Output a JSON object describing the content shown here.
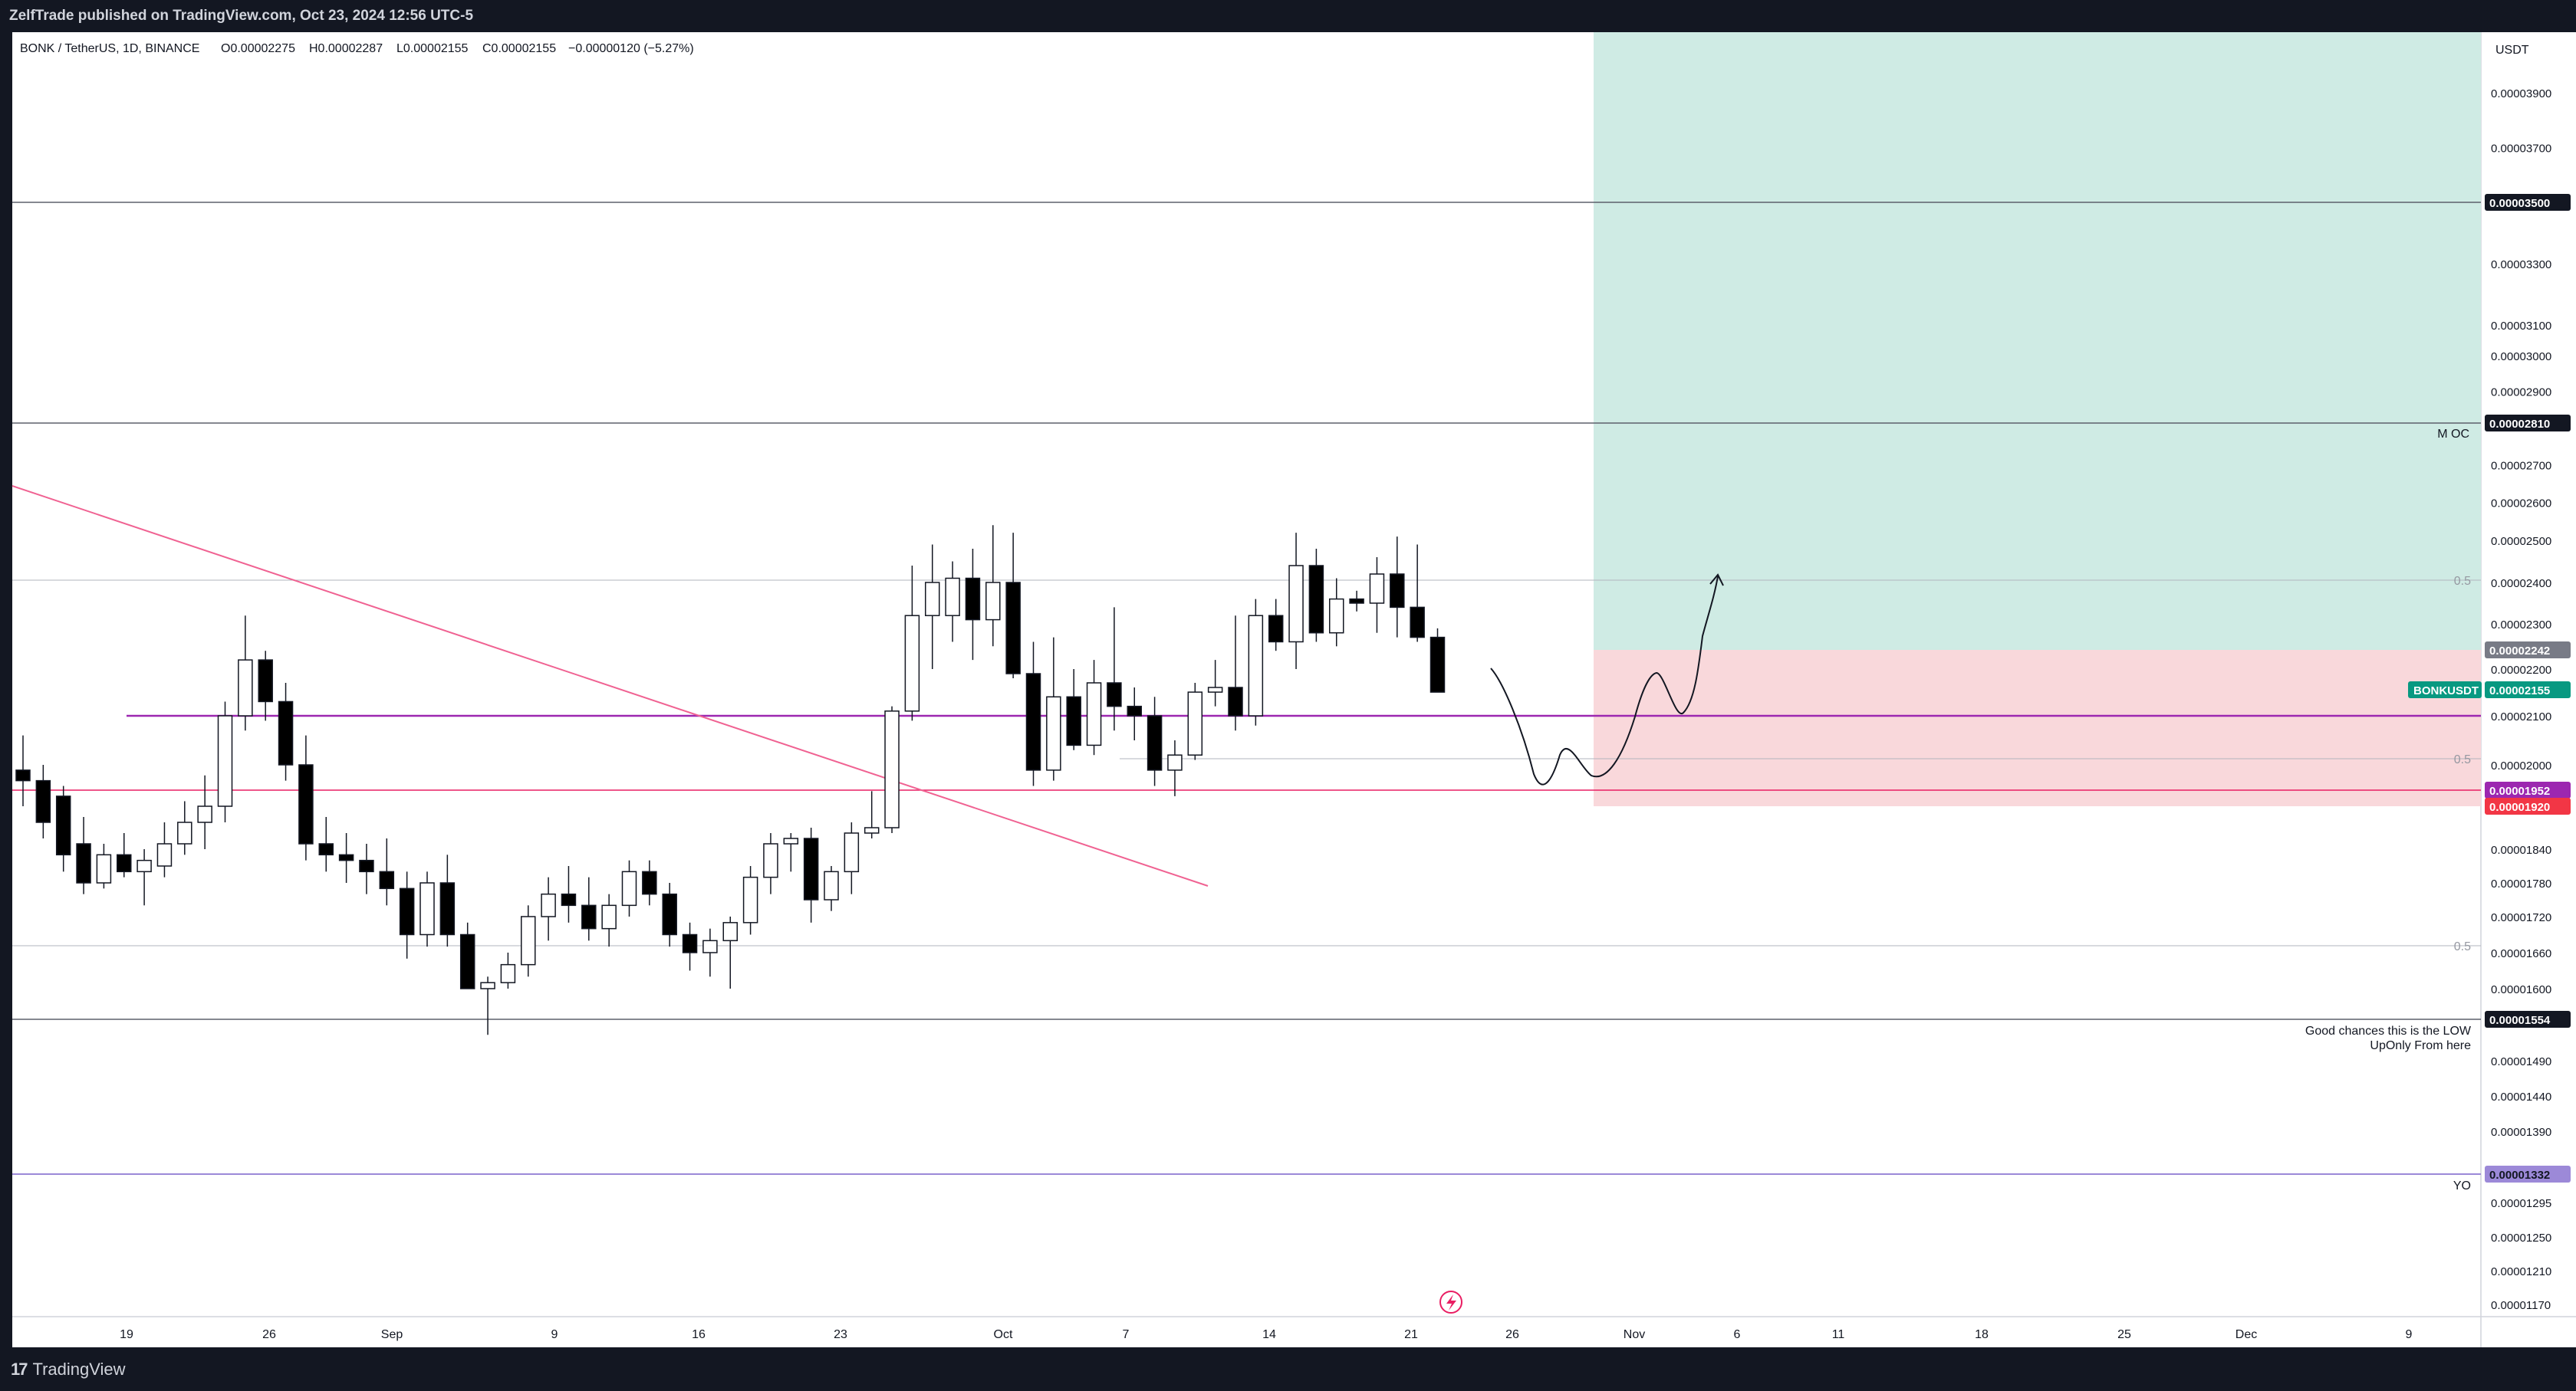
{
  "publisher": "ZelfTrade published on TradingView.com, Oct 23, 2024 12:56 UTC-5",
  "symbol_info": "BONK / TetherUS, 1D, BINANCE",
  "ohlc": {
    "o": "O0.00002275",
    "h": "H0.00002287",
    "l": "L0.00002155",
    "c": "C0.00002155",
    "change": "−0.00000120 (−5.27%)"
  },
  "currency": "USDT",
  "footer_brand": "TradingView",
  "colors": {
    "bull": "#ffffff",
    "bear": "#000000",
    "target_zone": "#cfebe4",
    "stop_zone": "#f9d8db",
    "trendline": "#f06292",
    "purple_line": "#9c27b0",
    "pink_line": "#e91e63",
    "yo_line": "#9c89d8"
  },
  "chart_data": {
    "type": "candlestick",
    "price_axis_labels": [
      "0.00003900",
      "0.00003700",
      "0.00003300",
      "0.00003100",
      "0.00003000",
      "0.00002900",
      "0.00002700",
      "0.00002600",
      "0.00002500",
      "0.00002400",
      "0.00002300",
      "0.00002200",
      "0.00002100",
      "0.00002000",
      "0.00001840",
      "0.00001780",
      "0.00001720",
      "0.00001660",
      "0.00001600",
      "0.00001490",
      "0.00001440",
      "0.00001390",
      "0.00001295",
      "0.00001250",
      "0.00001210",
      "0.00001170"
    ],
    "price_tags": [
      {
        "value": "0.00003500",
        "bg": "#131722",
        "fg": "#ffffff"
      },
      {
        "value": "0.00002810",
        "bg": "#131722",
        "fg": "#ffffff"
      },
      {
        "value": "0.00002242",
        "bg": "#787b86",
        "fg": "#ffffff"
      },
      {
        "value": "0.00002155",
        "bg": "#089981",
        "fg": "#ffffff",
        "symbol": "BONKUSDT"
      },
      {
        "value": "0.00001952",
        "bg": "#9c27b0",
        "fg": "#ffffff"
      },
      {
        "value": "0.00001920",
        "bg": "#f23645",
        "fg": "#ffffff"
      },
      {
        "value": "0.00001554",
        "bg": "#131722",
        "fg": "#ffffff"
      },
      {
        "value": "0.00001332",
        "bg": "#9c89d8",
        "fg": "#131722"
      }
    ],
    "time_axis_labels": [
      "19",
      "26",
      "Sep",
      "9",
      "16",
      "23",
      "Oct",
      "7",
      "14",
      "21",
      "26",
      "Nov",
      "6",
      "11",
      "18",
      "25",
      "Dec",
      "9"
    ],
    "annotations": {
      "moc": "M OC",
      "yo": "YO",
      "half": "0.5",
      "note_line1": "Good chances this is the LOW",
      "note_line2": "UpOnly From here"
    },
    "candles": [
      {
        "o": 1.99e-05,
        "h": 2.06e-05,
        "l": 1.92e-05,
        "c": 1.97e-05
      },
      {
        "o": 1.97e-05,
        "h": 2e-05,
        "l": 1.86e-05,
        "c": 1.89e-05
      },
      {
        "o": 1.94e-05,
        "h": 1.96e-05,
        "l": 1.8e-05,
        "c": 1.83e-05
      },
      {
        "o": 1.85e-05,
        "h": 1.9e-05,
        "l": 1.76e-05,
        "c": 1.78e-05
      },
      {
        "o": 1.78e-05,
        "h": 1.85e-05,
        "l": 1.77e-05,
        "c": 1.83e-05
      },
      {
        "o": 1.83e-05,
        "h": 1.87e-05,
        "l": 1.79e-05,
        "c": 1.8e-05
      },
      {
        "o": 1.8e-05,
        "h": 1.84e-05,
        "l": 1.74e-05,
        "c": 1.82e-05
      },
      {
        "o": 1.81e-05,
        "h": 1.89e-05,
        "l": 1.79e-05,
        "c": 1.85e-05
      },
      {
        "o": 1.85e-05,
        "h": 1.93e-05,
        "l": 1.83e-05,
        "c": 1.89e-05
      },
      {
        "o": 1.89e-05,
        "h": 1.98e-05,
        "l": 1.84e-05,
        "c": 1.92e-05
      },
      {
        "o": 1.92e-05,
        "h": 2.13e-05,
        "l": 1.89e-05,
        "c": 2.1e-05
      },
      {
        "o": 2.1e-05,
        "h": 2.32e-05,
        "l": 2.07e-05,
        "c": 2.22e-05
      },
      {
        "o": 2.22e-05,
        "h": 2.24e-05,
        "l": 2.09e-05,
        "c": 2.13e-05
      },
      {
        "o": 2.13e-05,
        "h": 2.17e-05,
        "l": 1.97e-05,
        "c": 2e-05
      },
      {
        "o": 2e-05,
        "h": 2.06e-05,
        "l": 1.82e-05,
        "c": 1.85e-05
      },
      {
        "o": 1.85e-05,
        "h": 1.9e-05,
        "l": 1.8e-05,
        "c": 1.83e-05
      },
      {
        "o": 1.83e-05,
        "h": 1.87e-05,
        "l": 1.78e-05,
        "c": 1.82e-05
      },
      {
        "o": 1.82e-05,
        "h": 1.85e-05,
        "l": 1.76e-05,
        "c": 1.8e-05
      },
      {
        "o": 1.8e-05,
        "h": 1.86e-05,
        "l": 1.74e-05,
        "c": 1.77e-05
      },
      {
        "o": 1.77e-05,
        "h": 1.8e-05,
        "l": 1.65e-05,
        "c": 1.69e-05
      },
      {
        "o": 1.69e-05,
        "h": 1.8e-05,
        "l": 1.67e-05,
        "c": 1.78e-05
      },
      {
        "o": 1.78e-05,
        "h": 1.83e-05,
        "l": 1.67e-05,
        "c": 1.69e-05
      },
      {
        "o": 1.69e-05,
        "h": 1.71e-05,
        "l": 1.6e-05,
        "c": 1.6e-05
      },
      {
        "o": 1.6e-05,
        "h": 1.62e-05,
        "l": 1.53e-05,
        "c": 1.61e-05
      },
      {
        "o": 1.61e-05,
        "h": 1.66e-05,
        "l": 1.6e-05,
        "c": 1.64e-05
      },
      {
        "o": 1.64e-05,
        "h": 1.74e-05,
        "l": 1.62e-05,
        "c": 1.72e-05
      },
      {
        "o": 1.72e-05,
        "h": 1.79e-05,
        "l": 1.68e-05,
        "c": 1.76e-05
      },
      {
        "o": 1.76e-05,
        "h": 1.81e-05,
        "l": 1.71e-05,
        "c": 1.74e-05
      },
      {
        "o": 1.74e-05,
        "h": 1.79e-05,
        "l": 1.68e-05,
        "c": 1.7e-05
      },
      {
        "o": 1.7e-05,
        "h": 1.76e-05,
        "l": 1.67e-05,
        "c": 1.74e-05
      },
      {
        "o": 1.74e-05,
        "h": 1.82e-05,
        "l": 1.72e-05,
        "c": 1.8e-05
      },
      {
        "o": 1.8e-05,
        "h": 1.82e-05,
        "l": 1.74e-05,
        "c": 1.76e-05
      },
      {
        "o": 1.76e-05,
        "h": 1.78e-05,
        "l": 1.67e-05,
        "c": 1.69e-05
      },
      {
        "o": 1.69e-05,
        "h": 1.71e-05,
        "l": 1.63e-05,
        "c": 1.66e-05
      },
      {
        "o": 1.66e-05,
        "h": 1.7e-05,
        "l": 1.62e-05,
        "c": 1.68e-05
      },
      {
        "o": 1.68e-05,
        "h": 1.72e-05,
        "l": 1.6e-05,
        "c": 1.71e-05
      },
      {
        "o": 1.71e-05,
        "h": 1.81e-05,
        "l": 1.69e-05,
        "c": 1.79e-05
      },
      {
        "o": 1.79e-05,
        "h": 1.87e-05,
        "l": 1.76e-05,
        "c": 1.85e-05
      },
      {
        "o": 1.85e-05,
        "h": 1.87e-05,
        "l": 1.8e-05,
        "c": 1.86e-05
      },
      {
        "o": 1.86e-05,
        "h": 1.88e-05,
        "l": 1.71e-05,
        "c": 1.75e-05
      },
      {
        "o": 1.75e-05,
        "h": 1.81e-05,
        "l": 1.73e-05,
        "c": 1.8e-05
      },
      {
        "o": 1.8e-05,
        "h": 1.89e-05,
        "l": 1.76e-05,
        "c": 1.87e-05
      },
      {
        "o": 1.87e-05,
        "h": 1.95e-05,
        "l": 1.86e-05,
        "c": 1.88e-05
      },
      {
        "o": 1.88e-05,
        "h": 2.12e-05,
        "l": 1.87e-05,
        "c": 2.11e-05
      },
      {
        "o": 2.11e-05,
        "h": 2.44e-05,
        "l": 2.09e-05,
        "c": 2.32e-05
      },
      {
        "o": 2.32e-05,
        "h": 2.49e-05,
        "l": 2.2e-05,
        "c": 2.4e-05
      },
      {
        "o": 2.32e-05,
        "h": 2.45e-05,
        "l": 2.26e-05,
        "c": 2.41e-05
      },
      {
        "o": 2.41e-05,
        "h": 2.48e-05,
        "l": 2.22e-05,
        "c": 2.31e-05
      },
      {
        "o": 2.31e-05,
        "h": 2.54e-05,
        "l": 2.25e-05,
        "c": 2.4e-05
      },
      {
        "o": 2.4e-05,
        "h": 2.52e-05,
        "l": 2.18e-05,
        "c": 2.19e-05
      },
      {
        "o": 2.19e-05,
        "h": 2.26e-05,
        "l": 1.96e-05,
        "c": 1.99e-05
      },
      {
        "o": 1.99e-05,
        "h": 2.27e-05,
        "l": 1.97e-05,
        "c": 2.14e-05
      },
      {
        "o": 2.14e-05,
        "h": 2.2e-05,
        "l": 2.03e-05,
        "c": 2.04e-05
      },
      {
        "o": 2.04e-05,
        "h": 2.22e-05,
        "l": 2.02e-05,
        "c": 2.17e-05
      },
      {
        "o": 2.17e-05,
        "h": 2.34e-05,
        "l": 2.07e-05,
        "c": 2.12e-05
      },
      {
        "o": 2.12e-05,
        "h": 2.16e-05,
        "l": 2.05e-05,
        "c": 2.1e-05
      },
      {
        "o": 2.1e-05,
        "h": 2.14e-05,
        "l": 1.96e-05,
        "c": 1.99e-05
      },
      {
        "o": 1.99e-05,
        "h": 2.05e-05,
        "l": 1.94e-05,
        "c": 2.02e-05
      },
      {
        "o": 2.02e-05,
        "h": 2.17e-05,
        "l": 2.01e-05,
        "c": 2.15e-05
      },
      {
        "o": 2.15e-05,
        "h": 2.22e-05,
        "l": 2.12e-05,
        "c": 2.16e-05
      },
      {
        "o": 2.16e-05,
        "h": 2.32e-05,
        "l": 2.07e-05,
        "c": 2.1e-05
      },
      {
        "o": 2.1e-05,
        "h": 2.36e-05,
        "l": 2.08e-05,
        "c": 2.32e-05
      },
      {
        "o": 2.32e-05,
        "h": 2.36e-05,
        "l": 2.24e-05,
        "c": 2.26e-05
      },
      {
        "o": 2.26e-05,
        "h": 2.52e-05,
        "l": 2.2e-05,
        "c": 2.44e-05
      },
      {
        "o": 2.44e-05,
        "h": 2.48e-05,
        "l": 2.26e-05,
        "c": 2.28e-05
      },
      {
        "o": 2.28e-05,
        "h": 2.41e-05,
        "l": 2.25e-05,
        "c": 2.36e-05
      },
      {
        "o": 2.36e-05,
        "h": 2.38e-05,
        "l": 2.33e-05,
        "c": 2.35e-05
      },
      {
        "o": 2.35e-05,
        "h": 2.46e-05,
        "l": 2.28e-05,
        "c": 2.42e-05
      },
      {
        "o": 2.42e-05,
        "h": 2.51e-05,
        "l": 2.27e-05,
        "c": 2.34e-05
      },
      {
        "o": 2.34e-05,
        "h": 2.49e-05,
        "l": 2.26e-05,
        "c": 2.27e-05
      },
      {
        "o": 2.27e-05,
        "h": 2.29e-05,
        "l": 2.15e-05,
        "c": 2.15e-05
      }
    ]
  }
}
